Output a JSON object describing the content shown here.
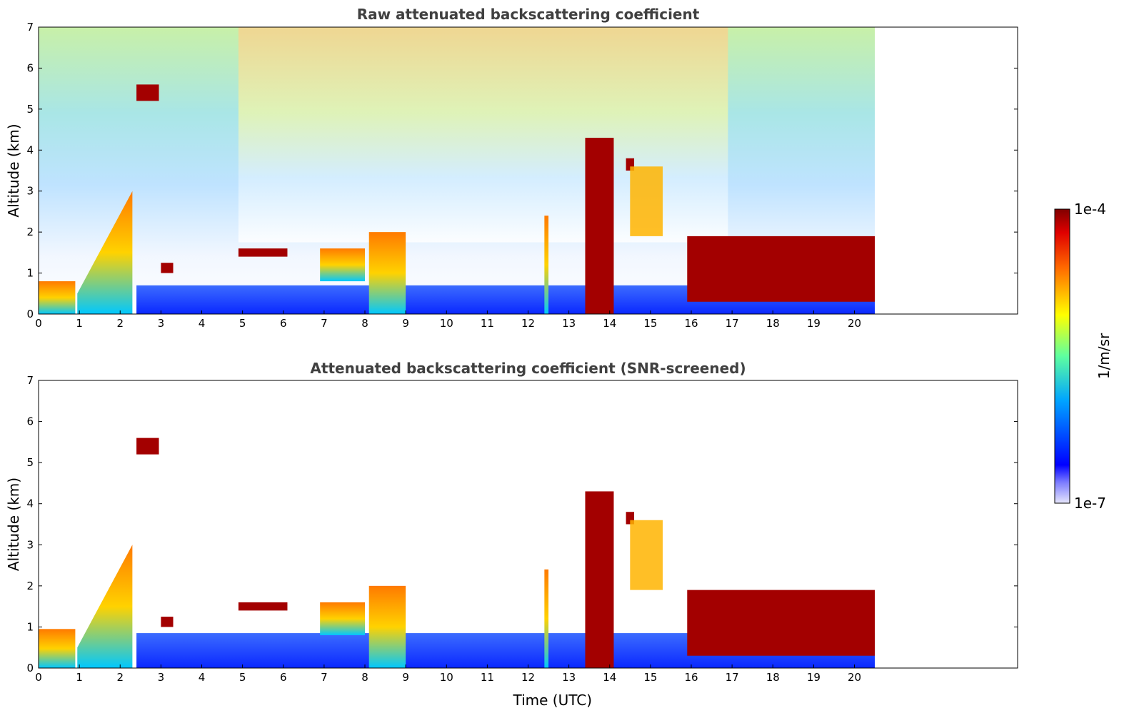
{
  "chart_data": [
    {
      "type": "heatmap",
      "title": "Raw attenuated backscattering coefficient",
      "xlabel": "",
      "ylabel": "Altitude (km)",
      "xlim": [
        0,
        24
      ],
      "ylim": [
        0,
        7
      ],
      "x_ticks": [
        0,
        1,
        2,
        3,
        4,
        5,
        6,
        7,
        8,
        9,
        10,
        11,
        12,
        13,
        14,
        15,
        16,
        17,
        18,
        19,
        20
      ],
      "y_ticks": [
        0,
        1,
        2,
        3,
        4,
        5,
        6,
        7
      ],
      "data_extent_x": [
        0,
        20.5
      ],
      "colorscale": "jet",
      "log_scale": true,
      "vmin": "1e-7",
      "vmax": "1e-4",
      "cloud_features": [
        {
          "x": [
            0,
            0.9
          ],
          "y": [
            0,
            0.8
          ],
          "level": "high"
        },
        {
          "x": [
            0.95,
            2.3
          ],
          "y": [
            0,
            3.0
          ],
          "level": "high",
          "shape": "rising-layer"
        },
        {
          "x": [
            2.4,
            2.95
          ],
          "y": [
            5.2,
            5.6
          ],
          "level": "very-high"
        },
        {
          "x": [
            3.0,
            3.3
          ],
          "y": [
            1.0,
            1.25
          ],
          "level": "very-high"
        },
        {
          "x": [
            4.9,
            6.1
          ],
          "y": [
            1.4,
            1.6
          ],
          "level": "very-high"
        },
        {
          "x": [
            6.9,
            8.0
          ],
          "y": [
            0.8,
            1.6
          ],
          "level": "high"
        },
        {
          "x": [
            8.1,
            9.0
          ],
          "y": [
            0,
            2.0
          ],
          "level": "high"
        },
        {
          "x": [
            12.4,
            12.5
          ],
          "y": [
            0,
            2.4
          ],
          "level": "high"
        },
        {
          "x": [
            13.4,
            14.1
          ],
          "y": [
            0,
            4.3
          ],
          "level": "very-high"
        },
        {
          "x": [
            14.4,
            14.6
          ],
          "y": [
            3.5,
            3.8
          ],
          "level": "very-high"
        },
        {
          "x": [
            14.5,
            15.3
          ],
          "y": [
            1.9,
            3.6
          ],
          "level": "medium-high"
        },
        {
          "x": [
            15.9,
            20.5
          ],
          "y": [
            0.3,
            1.9
          ],
          "level": "very-high"
        }
      ]
    },
    {
      "type": "heatmap",
      "title": "Attenuated backscattering coefficient (SNR-screened)",
      "xlabel": "Time (UTC)",
      "ylabel": "Altitude (km)",
      "xlim": [
        0,
        24
      ],
      "ylim": [
        0,
        7
      ],
      "x_ticks": [
        0,
        1,
        2,
        3,
        4,
        5,
        6,
        7,
        8,
        9,
        10,
        11,
        12,
        13,
        14,
        15,
        16,
        17,
        18,
        19,
        20
      ],
      "y_ticks": [
        0,
        1,
        2,
        3,
        4,
        5,
        6,
        7
      ],
      "data_extent_x": [
        0,
        20.5
      ],
      "colorscale": "jet",
      "log_scale": true,
      "vmin": "1e-7",
      "vmax": "1e-4",
      "cloud_features": [
        {
          "x": [
            0,
            0.9
          ],
          "y": [
            0,
            0.95
          ],
          "level": "high"
        },
        {
          "x": [
            0.95,
            2.3
          ],
          "y": [
            0,
            3.0
          ],
          "level": "high",
          "shape": "rising-layer"
        },
        {
          "x": [
            2.4,
            2.95
          ],
          "y": [
            5.2,
            5.6
          ],
          "level": "very-high"
        },
        {
          "x": [
            3.0,
            3.3
          ],
          "y": [
            1.0,
            1.25
          ],
          "level": "very-high"
        },
        {
          "x": [
            4.9,
            6.1
          ],
          "y": [
            1.4,
            1.6
          ],
          "level": "very-high"
        },
        {
          "x": [
            6.9,
            8.0
          ],
          "y": [
            0.8,
            1.6
          ],
          "level": "high"
        },
        {
          "x": [
            8.1,
            9.0
          ],
          "y": [
            0,
            2.0
          ],
          "level": "high"
        },
        {
          "x": [
            12.4,
            12.5
          ],
          "y": [
            0,
            2.4
          ],
          "level": "high"
        },
        {
          "x": [
            13.4,
            14.1
          ],
          "y": [
            0,
            4.3
          ],
          "level": "very-high"
        },
        {
          "x": [
            14.4,
            14.6
          ],
          "y": [
            3.5,
            3.8
          ],
          "level": "very-high"
        },
        {
          "x": [
            14.5,
            15.3
          ],
          "y": [
            1.9,
            3.6
          ],
          "level": "medium-high"
        },
        {
          "x": [
            15.9,
            20.5
          ],
          "y": [
            0.3,
            1.9
          ],
          "level": "very-high"
        }
      ]
    }
  ],
  "colorbar": {
    "label": "1/m/sr",
    "max_label": "1e-4",
    "min_label": "1e-7"
  }
}
